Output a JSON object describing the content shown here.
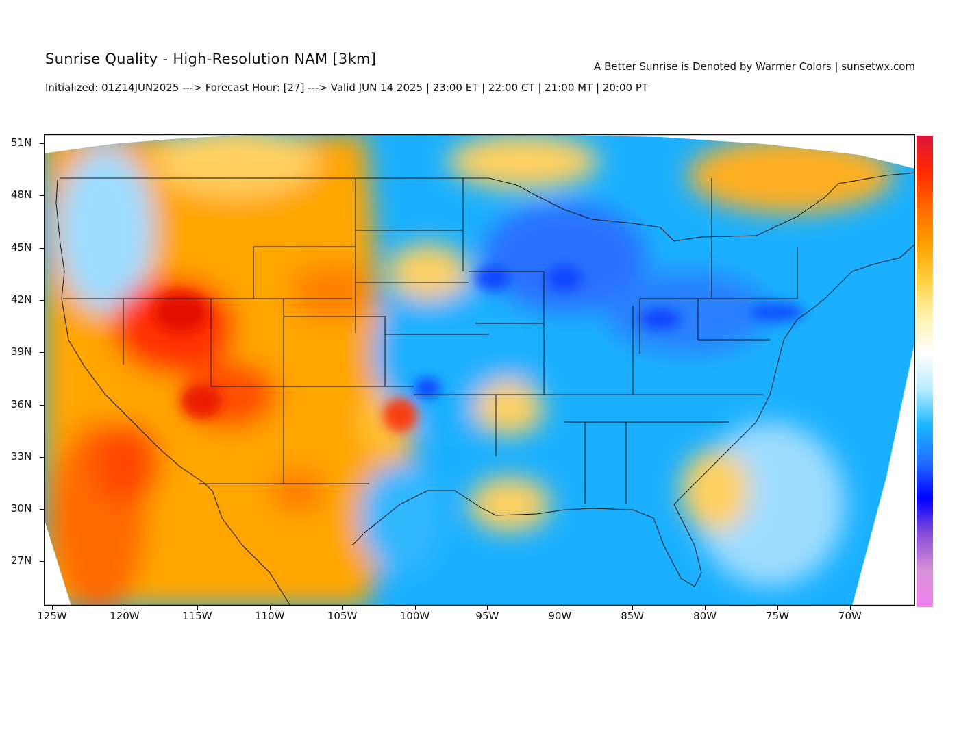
{
  "header": {
    "title": "Sunrise Quality - High-Resolution NAM [3km]",
    "subtitle": "Initialized: 01Z14JUN2025 ---> Forecast Hour: [27] ---> Valid JUN 14 2025 | 23:00 ET | 22:00 CT | 21:00 MT | 20:00 PT",
    "tagline": "A Better Sunrise is Denoted by Warmer Colors | sunsetwx.com"
  },
  "axes": {
    "lat_labels": [
      "51N",
      "48N",
      "45N",
      "42N",
      "39N",
      "36N",
      "33N",
      "30N",
      "27N"
    ],
    "lon_labels": [
      "125W",
      "120W",
      "115W",
      "110W",
      "105W",
      "100W",
      "95W",
      "90W",
      "85W",
      "80W",
      "75W",
      "70W"
    ]
  },
  "colorbar": {
    "colors": [
      "#dc143c",
      "#ff2a00",
      "#ff6a00",
      "#ffa000",
      "#ffd040",
      "#fff3b0",
      "#ffffff",
      "#b8ecff",
      "#1ab6ff",
      "#1f6fff",
      "#0000ff",
      "#8a4fd8",
      "#d890d8",
      "#ee82ee"
    ]
  },
  "map": {
    "colors": {
      "warm_red": "#ff3000",
      "warm_orange": "#ffa000",
      "warm_yellow": "#ffd060",
      "cool_light": "#9edcff",
      "cool_blue": "#1ab0ff",
      "cool_deep": "#2a70ff",
      "cool_indigo": "#1040ff",
      "outline": "#111111"
    }
  }
}
